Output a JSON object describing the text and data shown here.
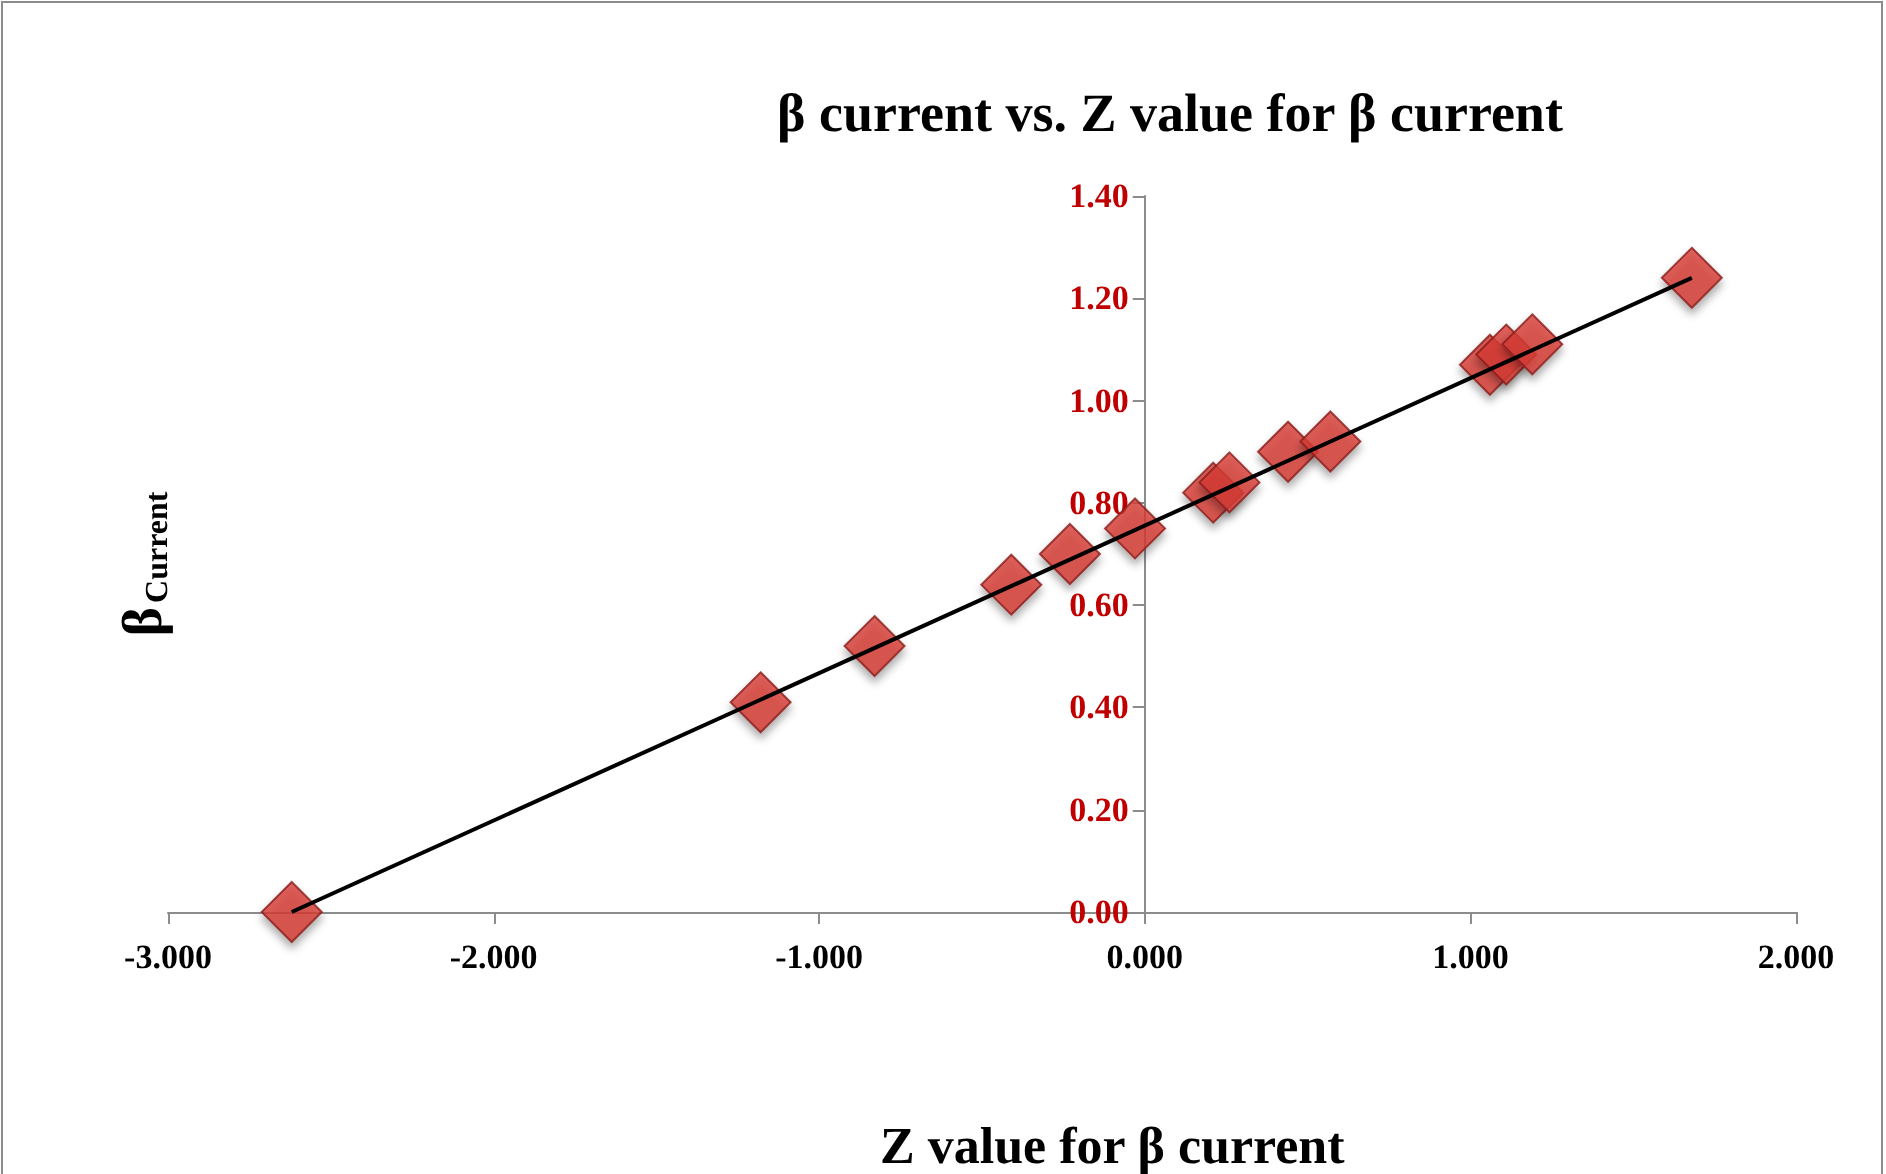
{
  "chart_data": {
    "type": "scatter",
    "title": "β current vs. Z value for β current",
    "xlabel": "Z value for β current",
    "ylabel": "β$_{Current}$",
    "series": [
      {
        "color": "#d63c36",
        "marker": "diamond",
        "x": [
          -2.62,
          -1.18,
          -0.83,
          -0.41,
          -0.23,
          -0.03,
          0.21,
          0.26,
          0.44,
          0.57,
          1.06,
          1.11,
          1.19,
          1.68
        ],
        "values": [
          0.0,
          0.41,
          0.52,
          0.64,
          0.7,
          0.75,
          0.82,
          0.84,
          0.9,
          0.92,
          1.07,
          1.09,
          1.11,
          1.24
        ]
      },
      {
        "type": "line",
        "color": "#000000",
        "x": [
          -2.62,
          1.68
        ],
        "values": [
          0.0,
          1.24
        ]
      }
    ],
    "grid": false,
    "xlim": [
      -3,
      2
    ],
    "xticks": [
      {
        "value": -3,
        "label": "-3.000"
      },
      {
        "value": -2,
        "label": "-2.000"
      },
      {
        "value": -1,
        "label": "-1.000"
      },
      {
        "value": 0,
        "label": "0.000"
      },
      {
        "value": 1,
        "label": "1.000"
      },
      {
        "value": 2,
        "label": "2.000"
      }
    ],
    "ylim": [
      0,
      1.4
    ],
    "yticks": [
      {
        "value": 0,
        "label": "0.00"
      },
      {
        "value": 0.2,
        "label": "0.20"
      },
      {
        "value": 0.4,
        "label": "0.40"
      },
      {
        "value": 0.6,
        "label": "0.60"
      },
      {
        "value": 0.8,
        "label": "0.80"
      },
      {
        "value": 1,
        "label": "1.00"
      },
      {
        "value": 1.2,
        "label": "1.20"
      },
      {
        "value": 1.4,
        "label": "1.40"
      }
    ]
  }
}
